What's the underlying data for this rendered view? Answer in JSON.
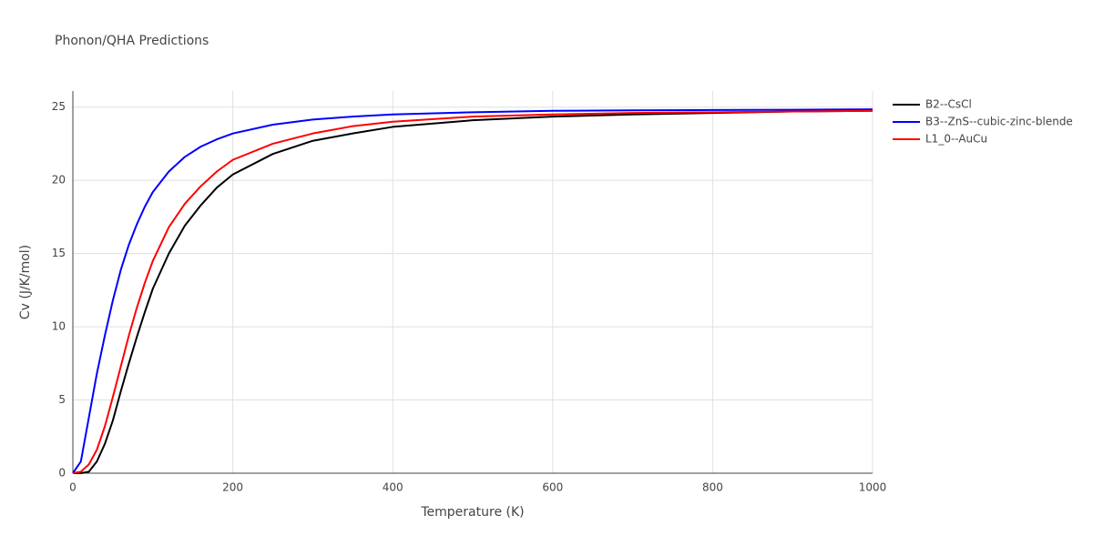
{
  "chart_data": {
    "type": "line",
    "title": "Phonon/QHA Predictions",
    "x_label": "Temperature (K)",
    "y_label": "Cv (J/K/mol)",
    "x": [
      0,
      10,
      20,
      30,
      40,
      50,
      60,
      70,
      80,
      90,
      100,
      120,
      140,
      160,
      180,
      200,
      250,
      300,
      350,
      400,
      500,
      600,
      700,
      800,
      900,
      1000
    ],
    "series": [
      {
        "name": "B2--CsCl",
        "color": "#000000",
        "values": [
          0,
          0,
          0.1,
          0.8,
          2.0,
          3.6,
          5.6,
          7.5,
          9.3,
          11.0,
          12.6,
          15.0,
          16.9,
          18.3,
          19.5,
          20.4,
          21.8,
          22.7,
          23.2,
          23.65,
          24.1,
          24.35,
          24.5,
          24.6,
          24.7,
          24.75
        ]
      },
      {
        "name": "B3--ZnS--cubic-zinc-blende",
        "color": "#0000ff",
        "values": [
          0,
          0.8,
          3.8,
          6.8,
          9.4,
          11.8,
          13.9,
          15.6,
          17.0,
          18.2,
          19.2,
          20.6,
          21.6,
          22.3,
          22.8,
          23.2,
          23.8,
          24.15,
          24.35,
          24.5,
          24.65,
          24.75,
          24.78,
          24.8,
          24.82,
          24.85
        ]
      },
      {
        "name": "L1_0--AuCu",
        "color": "#ff0000",
        "values": [
          0,
          0.1,
          0.6,
          1.6,
          3.2,
          5.2,
          7.3,
          9.4,
          11.3,
          13.0,
          14.5,
          16.8,
          18.4,
          19.6,
          20.6,
          21.4,
          22.5,
          23.2,
          23.7,
          24.0,
          24.35,
          24.5,
          24.6,
          24.65,
          24.7,
          24.75
        ]
      }
    ],
    "xlim": [
      0,
      1000
    ],
    "xticks": [
      0,
      200,
      400,
      600,
      800,
      1000
    ],
    "ylim": [
      0,
      26.1
    ],
    "yticks": [
      0,
      5,
      10,
      15,
      20,
      25
    ],
    "grid": true,
    "legend": "outside-right"
  }
}
